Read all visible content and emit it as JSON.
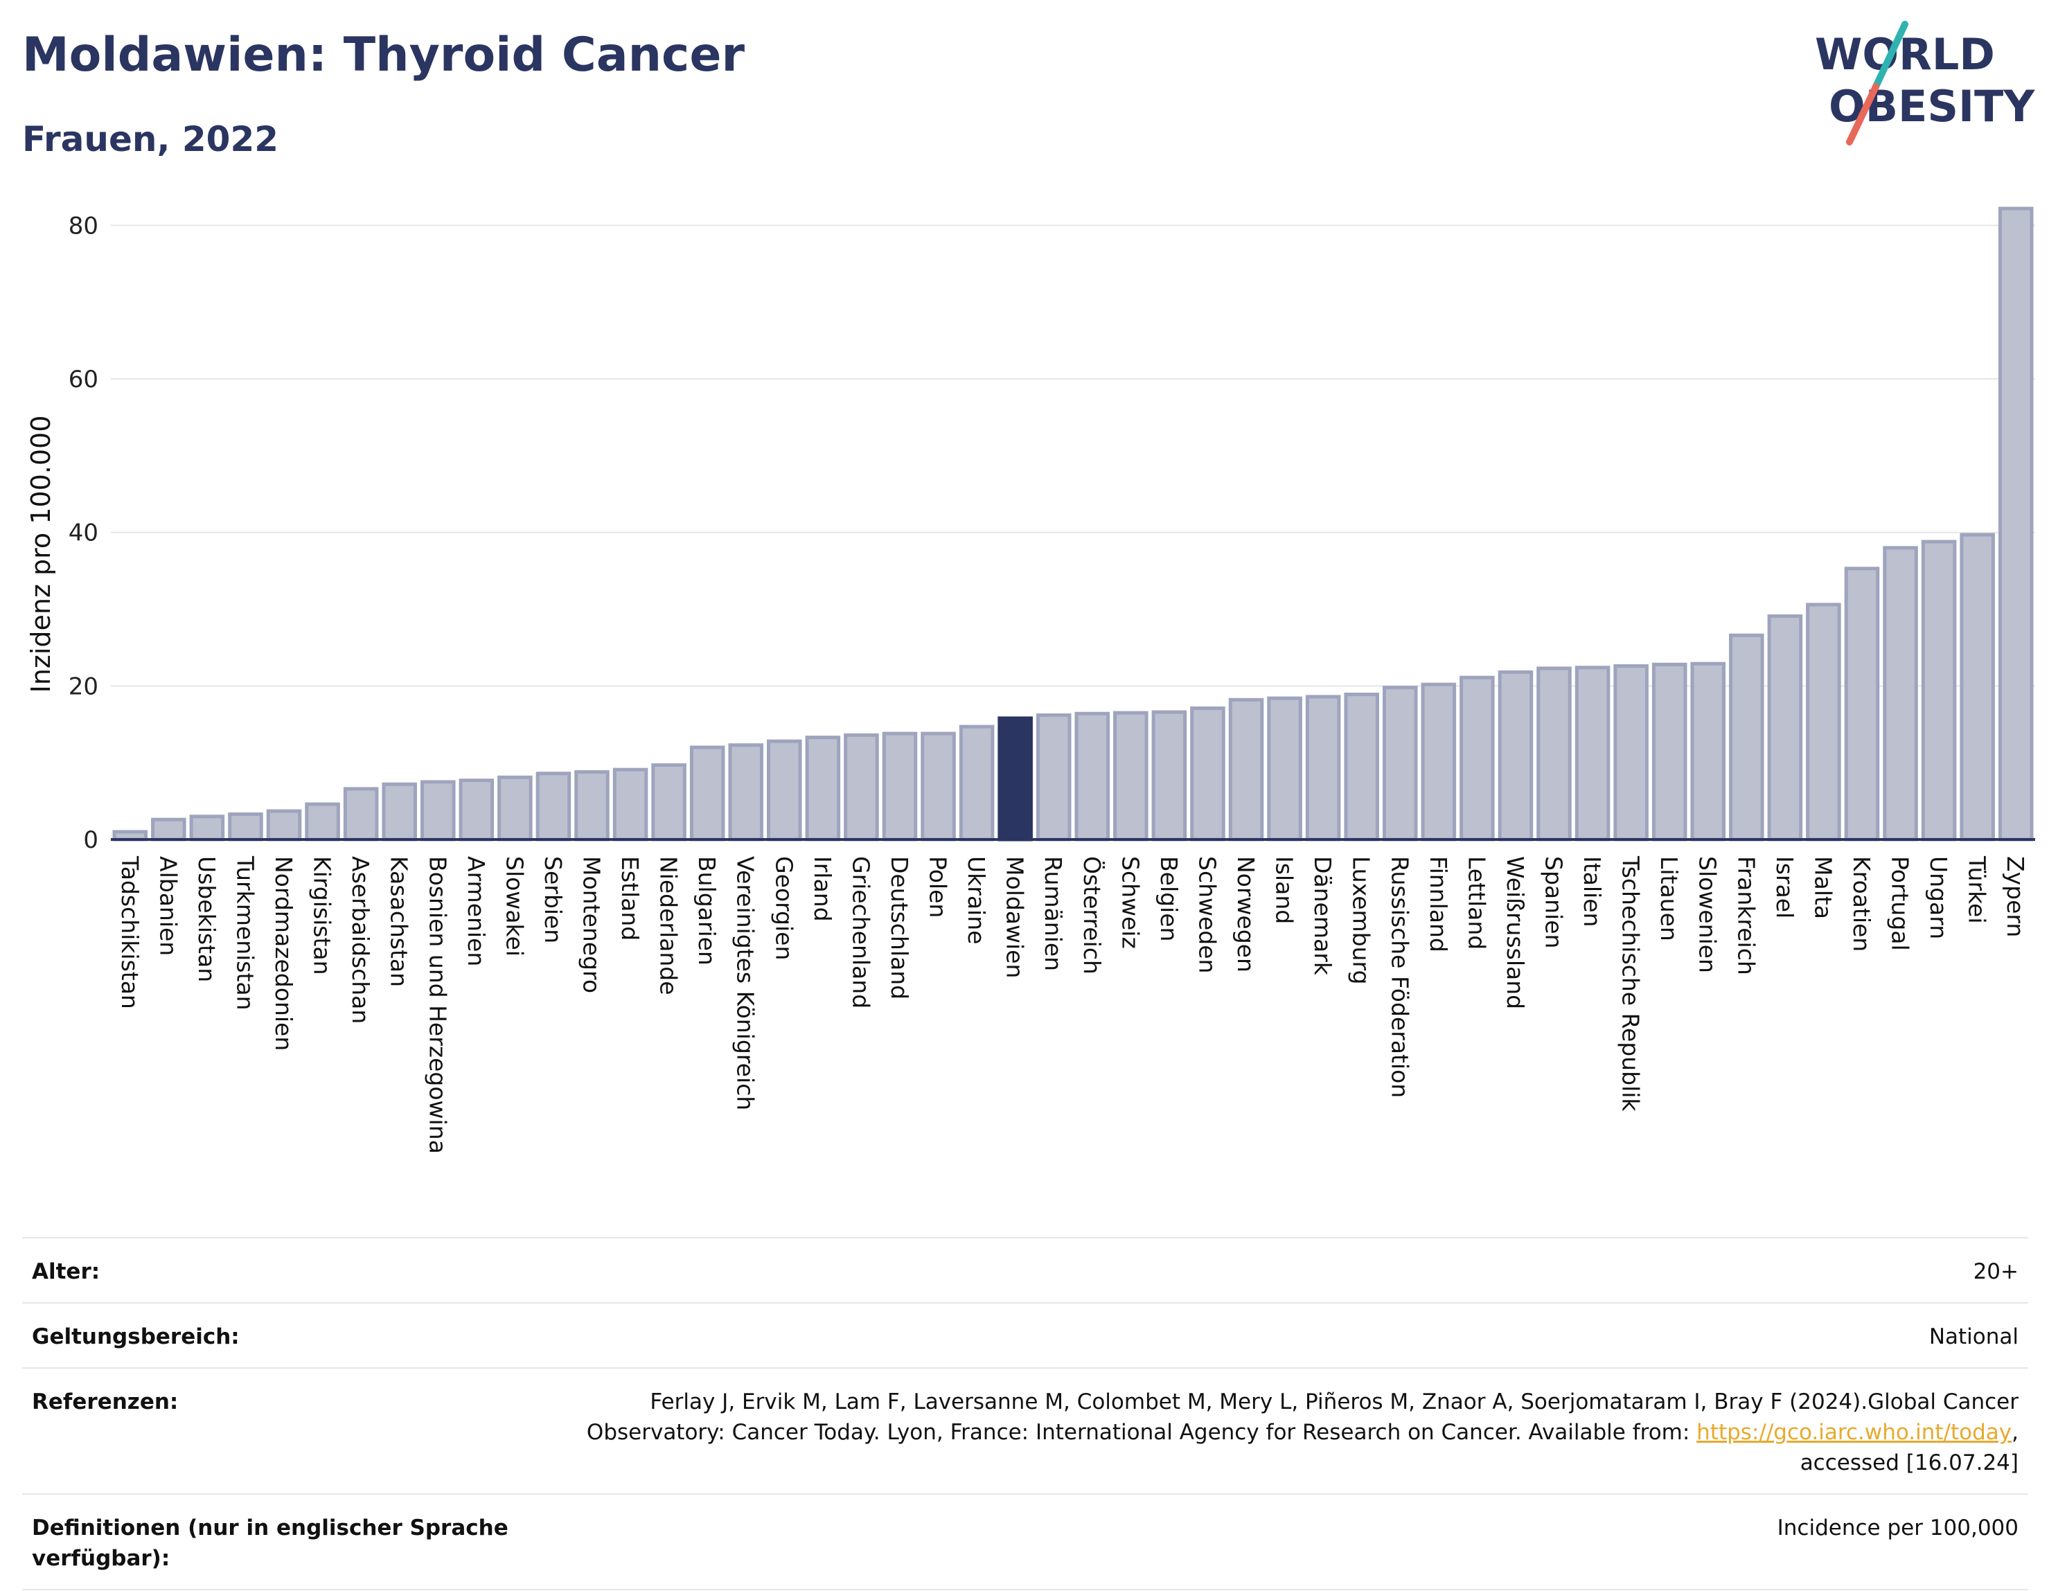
{
  "header": {
    "title": "Moldawien: Thyroid Cancer",
    "subtitle": "Frauen, 2022"
  },
  "logo": {
    "line1": "WORLD",
    "line2": "OBESITY",
    "colors": {
      "text": "#2b3561",
      "slash_teal": "#2fb3b0",
      "slash_coral": "#e8685a"
    }
  },
  "colors": {
    "bar": "#bcc0cf",
    "bar_border": "#9ea4bd",
    "highlight": "#2b3561",
    "grid": "#e6e6e6",
    "axis": "#2b3561"
  },
  "chart_data": {
    "type": "bar",
    "title": "Moldawien: Thyroid Cancer",
    "subtitle": "Frauen, 2022",
    "xlabel": "",
    "ylabel": "Inzidenz pro 100.000",
    "ylim": [
      0,
      85
    ],
    "yticks": [
      0,
      20,
      40,
      60,
      80
    ],
    "grid": true,
    "highlight": "Moldawien",
    "categories": [
      "Tadschikistan",
      "Albanien",
      "Usbekistan",
      "Turkmenistan",
      "Nordmazedonien",
      "Kirgisistan",
      "Aserbaidschan",
      "Kasachstan",
      "Bosnien und Herzegowina",
      "Armenien",
      "Slowakei",
      "Serbien",
      "Montenegro",
      "Estland",
      "Niederlande",
      "Bulgarien",
      "Vereinigtes Königreich",
      "Georgien",
      "Irland",
      "Griechenland",
      "Deutschland",
      "Polen",
      "Ukraine",
      "Moldawien",
      "Rumänien",
      "Österreich",
      "Schweiz",
      "Belgien",
      "Schweden",
      "Norwegen",
      "Island",
      "Dänemark",
      "Luxemburg",
      "Russische Föderation",
      "Finnland",
      "Lettland",
      "Weißrussland",
      "Spanien",
      "Italien",
      "Tschechische Republik",
      "Litauen",
      "Slowenien",
      "Frankreich",
      "Israel",
      "Malta",
      "Kroatien",
      "Portugal",
      "Ungarn",
      "Türkei",
      "Zypern"
    ],
    "values": [
      1.0,
      2.6,
      3.0,
      3.3,
      3.7,
      4.6,
      6.6,
      7.2,
      7.5,
      7.7,
      8.1,
      8.6,
      8.8,
      9.1,
      9.7,
      12.0,
      12.3,
      12.8,
      13.3,
      13.6,
      13.8,
      13.8,
      14.7,
      15.8,
      16.2,
      16.4,
      16.5,
      16.6,
      17.1,
      18.2,
      18.4,
      18.6,
      18.9,
      19.8,
      20.2,
      21.1,
      21.8,
      22.3,
      22.4,
      22.6,
      22.8,
      22.9,
      26.6,
      29.1,
      30.6,
      35.3,
      38.0,
      38.8,
      39.7,
      82.2
    ]
  },
  "info": {
    "rows": [
      {
        "key": "Alter:",
        "value": "20+"
      },
      {
        "key": "Geltungsbereich:",
        "value": "National"
      },
      {
        "key": "Referenzen:",
        "value_before": "Ferlay J, Ervik M, Lam F, Laversanne M, Colombet M, Mery L, Piñeros M, Znaor A, Soerjomataram I, Bray F (2024).Global Cancer Observatory: Cancer Today. Lyon, France: International Agency for Research on Cancer. Available from: ",
        "link": "https://gco.iarc.who.int/today",
        "value_after": ", accessed [16.07.24]"
      },
      {
        "key": "Definitionen (nur in englischer Sprache verfügbar):",
        "value": "Incidence per 100,000"
      }
    ]
  }
}
